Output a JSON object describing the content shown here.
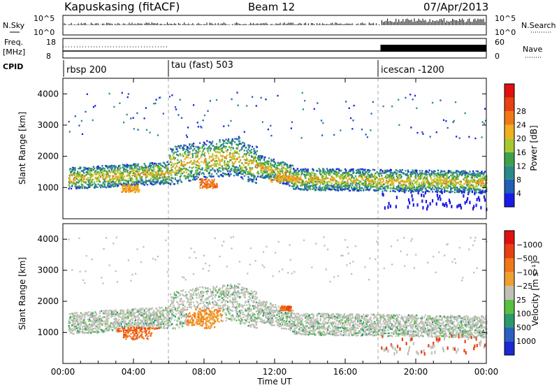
{
  "header": {
    "station": "Kapuskasing (fitACF)",
    "beam": "Beam 12",
    "date": "07/Apr/2013"
  },
  "strip_panels": {
    "nsky": {
      "label": "N.Sky",
      "left_ticks": [
        "10^5",
        "10^0"
      ],
      "right_ticks": [
        "10^5",
        "10^0"
      ],
      "right_label": "N.Search"
    },
    "freq": {
      "label_top": "Freq.",
      "label_bottom": "[MHz]",
      "left_ticks": [
        "18",
        "8"
      ],
      "right_ticks": [
        "60",
        "0"
      ],
      "right_label": "Nave"
    },
    "cpid": {
      "label": "CPID",
      "modes": [
        {
          "name": "rbsp 200",
          "start_hour": 0
        },
        {
          "name": "tau (fast) 503",
          "start_hour": 6
        },
        {
          "name": "icescan -1200",
          "start_hour": 18
        }
      ]
    }
  },
  "chart_data": [
    {
      "type": "heatmap",
      "id": "power",
      "ylabel": "Slant Range [km]",
      "yticks": [
        1000,
        2000,
        3000,
        4000
      ],
      "ylim": [
        0,
        4500
      ],
      "xlim": [
        0,
        24
      ],
      "colorbar": {
        "label": "Power [dB]",
        "ticks": [
          "4",
          "8",
          "12",
          "16",
          "20",
          "24",
          "28"
        ],
        "colors": [
          "#1a1ae6",
          "#1f5fb5",
          "#2a8a8a",
          "#3fa04a",
          "#a8c830",
          "#f0b020",
          "#f07818",
          "#e84010",
          "#e01010"
        ]
      }
    },
    {
      "type": "heatmap",
      "id": "velocity",
      "ylabel": "Slant Range [km]",
      "yticks": [
        1000,
        2000,
        3000,
        4000
      ],
      "ylim": [
        0,
        4500
      ],
      "xlim": [
        0,
        24
      ],
      "xlabel": "Time UT",
      "xticks": [
        "00:00",
        "04:00",
        "08:00",
        "12:00",
        "16:00",
        "20:00",
        "00:00"
      ],
      "colorbar": {
        "label": "Velocity [m s⁻¹]",
        "ticks": [
          "1000",
          "500",
          "100",
          "25",
          "−25",
          "−100",
          "−500",
          "−1000"
        ],
        "colors": [
          "#1a2ad0",
          "#2a60c0",
          "#2a9a6a",
          "#58c040",
          "#c0c0b8",
          "#f0a030",
          "#f07818",
          "#e84010",
          "#e01010"
        ]
      }
    }
  ]
}
